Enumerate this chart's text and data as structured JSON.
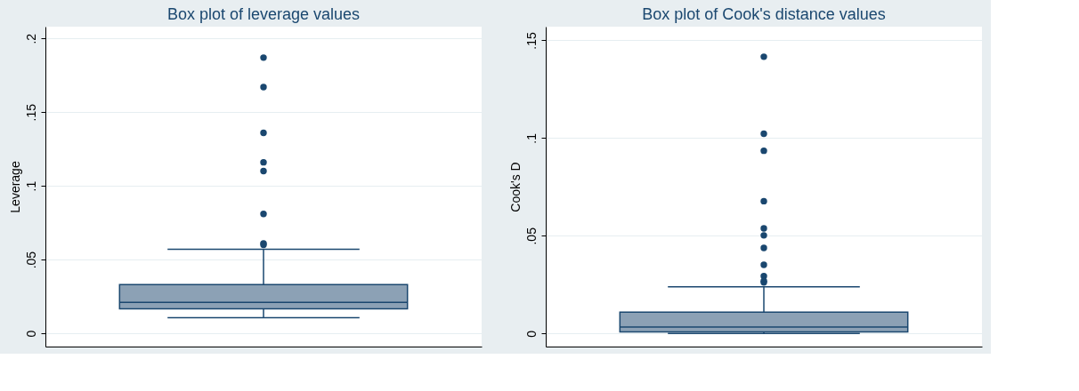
{
  "chart_data": [
    {
      "type": "box",
      "title": "Box plot of leverage values",
      "ylabel": "Leverage",
      "categories": [
        null
      ],
      "color": "#8ca1b5",
      "boxes": [
        {
          "low": 0.0106,
          "q1": 0.0166,
          "median": 0.021,
          "q3": 0.033,
          "high": 0.057,
          "outliers": [
            0.187,
            0.167,
            0.136,
            0.116,
            0.11,
            0.081,
            0.061,
            0.06
          ]
        }
      ],
      "ylim": [
        -0.009,
        0.208
      ],
      "yticks": [
        0,
        {
          "value": 0.05,
          "label": ".05"
        },
        {
          "value": 0.1,
          "label": ".1"
        },
        {
          "value": 0.15,
          "label": ".15"
        },
        {
          "value": 0.2,
          "label": ".2"
        }
      ],
      "grid": "y",
      "marker": "circle",
      "tick_labels": "y"
    },
    {
      "type": "box",
      "title": "Box plot of Cook's distance values",
      "ylabel": "Cook's D",
      "categories": [
        null
      ],
      "color": "#8ca1b5",
      "boxes": [
        {
          "low": 0.0,
          "q1": 0.0008,
          "median": 0.0033,
          "q3": 0.0109,
          "high": 0.0239,
          "outliers": [
            0.1416,
            0.1022,
            0.0935,
            0.0677,
            0.0538,
            0.0502,
            0.0438,
            0.0351,
            0.0293,
            0.0268,
            0.0261
          ]
        }
      ],
      "ylim": [
        -0.0067,
        0.157
      ],
      "yticks": [
        0,
        {
          "value": 0.05,
          "label": ".05"
        },
        {
          "value": 0.1,
          "label": ".1"
        },
        {
          "value": 0.15,
          "label": ".15"
        }
      ],
      "grid": "y",
      "marker": "circle",
      "tick_labels": "y"
    }
  ]
}
